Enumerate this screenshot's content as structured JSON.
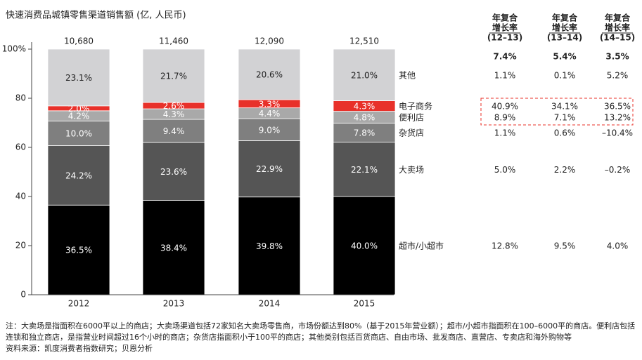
{
  "chart_data": {
    "type": "stacked-bar",
    "title": "快速消费品城镇零售渠道销售额 (亿, 人民币)",
    "categories": [
      "2012",
      "2013",
      "2014",
      "2015"
    ],
    "totals": [
      {
        "value": 10680,
        "label": "10,680"
      },
      {
        "value": 11460,
        "label": "11,460"
      },
      {
        "value": 12090,
        "label": "12,090"
      },
      {
        "value": 12510,
        "label": "12,510"
      }
    ],
    "series": [
      {
        "name": "超市/小超市",
        "color": "#000000",
        "values": [
          36.5,
          38.4,
          39.8,
          40.0
        ],
        "value_labels": [
          "36.5%",
          "38.4%",
          "39.8%",
          "40.0%"
        ]
      },
      {
        "name": "大卖场",
        "color": "#555555",
        "values": [
          24.2,
          23.6,
          22.9,
          22.1
        ],
        "value_labels": [
          "24.2%",
          "23.6%",
          "22.9%",
          "22.1%"
        ]
      },
      {
        "name": "杂货店",
        "color": "#7f7f7f",
        "values": [
          10.0,
          9.4,
          9.0,
          7.8
        ],
        "value_labels": [
          "10.0%",
          "9.4%",
          "9.0%",
          "7.8%"
        ]
      },
      {
        "name": "便利店",
        "color": "#a9a9a9",
        "values": [
          4.2,
          4.3,
          4.4,
          4.8
        ],
        "value_labels": [
          "4.2%",
          "4.3%",
          "4.4%",
          "4.8%"
        ]
      },
      {
        "name": "电子商务",
        "color": "#e8312a",
        "values": [
          2.0,
          2.6,
          3.3,
          4.3
        ],
        "value_labels": [
          "2.0%",
          "2.6%",
          "3.3%",
          "4.3%"
        ]
      },
      {
        "name": "其他",
        "color": "#d2d2d4",
        "values": [
          23.1,
          21.7,
          20.6,
          21.0
        ],
        "value_labels": [
          "23.1%",
          "21.7%",
          "20.6%",
          "21.0%"
        ]
      }
    ],
    "ylim": [
      0,
      100
    ],
    "yticks": [
      0,
      20,
      40,
      60,
      80,
      {
        "value": 100,
        "label": "100%"
      }
    ]
  },
  "cagr": {
    "headers": [
      [
        "年复合",
        "增长率",
        "(12–13)"
      ],
      [
        "年复合",
        "增长率",
        "(13–14)"
      ],
      [
        "年复合",
        "增长率",
        "(14–15)"
      ]
    ],
    "total": [
      "7.4%",
      "5.4%",
      "3.5%"
    ],
    "rows": [
      [
        "12.8%",
        "9.5%",
        "4.0%"
      ],
      [
        "5.0%",
        "2.2%",
        "–0.2%"
      ],
      [
        "1.1%",
        "0.6%",
        "–10.4%"
      ],
      [
        "8.9%",
        "7.1%",
        "13.2%"
      ],
      [
        "40.9%",
        "34.1%",
        "36.5%"
      ],
      [
        "1.1%",
        "0.1%",
        "5.2%"
      ]
    ]
  },
  "note": "注：大卖场是指面积在6000平以上的商店；大卖场渠道包括72家知名大卖场零售商，市场份额达到80%（基于2015年营业额）；超市/小超市指面积在100–6000平的商店。便利店包括连锁和独立商店，是指营业时间超过16个小时的商店；杂货店指面积小于100平的商店；其他类别包括百货商店、自由市场、批发商店、直营店、专卖店和海外购物等",
  "source": "资料来源：凯度消费者指数研究；贝恩分析"
}
